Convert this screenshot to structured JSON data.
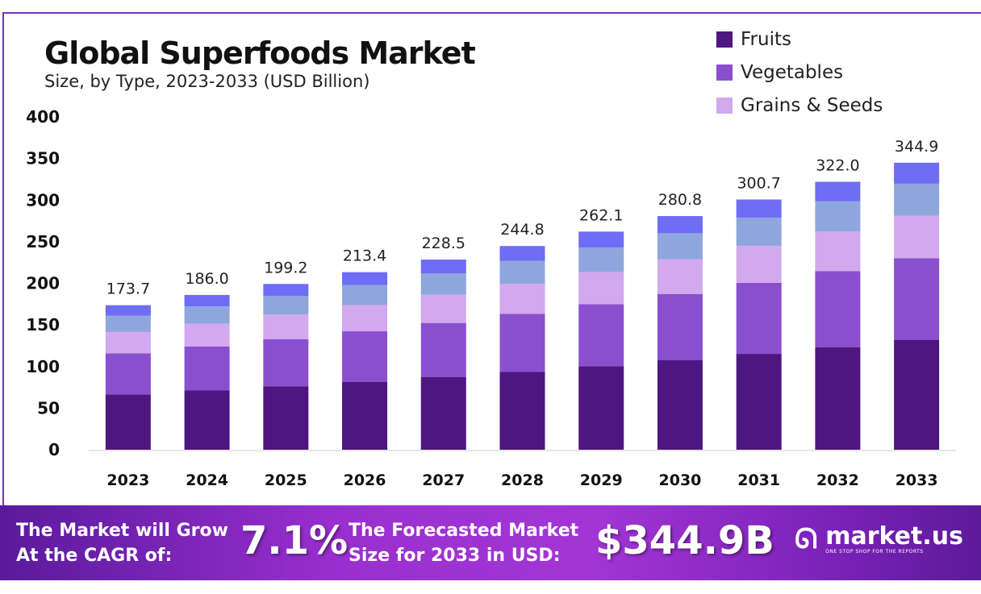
{
  "chart_data": {
    "type": "bar",
    "stacked": true,
    "title": "Global Superfoods Market",
    "subtitle": "Size, by Type, 2023-2033 (USD Billion)",
    "xlabel": "",
    "ylabel": "",
    "ylim": [
      0,
      400
    ],
    "yticks": [
      0,
      50,
      100,
      150,
      200,
      250,
      300,
      350,
      400
    ],
    "grid": false,
    "legend_position": "top-right",
    "categories": [
      "2023",
      "2024",
      "2025",
      "2026",
      "2027",
      "2028",
      "2029",
      "2030",
      "2031",
      "2032",
      "2033"
    ],
    "totals": [
      "173.7",
      "186.0",
      "199.2",
      "213.4",
      "228.5",
      "244.8",
      "262.1",
      "280.8",
      "300.7",
      "322.0",
      "344.9"
    ],
    "series": [
      {
        "name": "Fruits",
        "color": "#4e1680",
        "values": [
          66.5,
          71.2,
          76.3,
          81.7,
          87.5,
          93.8,
          100.4,
          107.5,
          115.2,
          123.3,
          132.1
        ]
      },
      {
        "name": "Vegetables",
        "color": "#8a4fcf",
        "values": [
          49.3,
          52.8,
          56.6,
          60.6,
          64.9,
          69.5,
          74.4,
          79.7,
          85.4,
          91.4,
          98.0
        ]
      },
      {
        "name": "Grains & Seeds",
        "color": "#d2a8ee",
        "values": [
          25.7,
          27.5,
          29.5,
          31.6,
          33.8,
          36.2,
          38.8,
          41.6,
          44.5,
          47.7,
          51.0
        ]
      },
      {
        "color": "#8ea6dc",
        "values": [
          19.5,
          20.8,
          22.3,
          23.9,
          25.6,
          27.4,
          29.4,
          31.4,
          33.7,
          36.1,
          38.6
        ]
      },
      {
        "color": "#6f6cf5",
        "values": [
          12.7,
          13.7,
          14.5,
          15.6,
          16.7,
          17.9,
          19.1,
          20.6,
          21.9,
          23.5,
          25.2
        ]
      }
    ]
  },
  "banner": {
    "cagr_label_line1": "The Market will Grow",
    "cagr_label_line2": "At the CAGR of:",
    "cagr_value": "7.1%",
    "forecast_label_line1": "The Forecasted Market",
    "forecast_label_line2": "Size for 2033 in USD:",
    "forecast_value": "$344.9B",
    "logo_name": "market.us",
    "logo_tagline": "ONE STOP SHOP FOR THE REPORTS"
  }
}
